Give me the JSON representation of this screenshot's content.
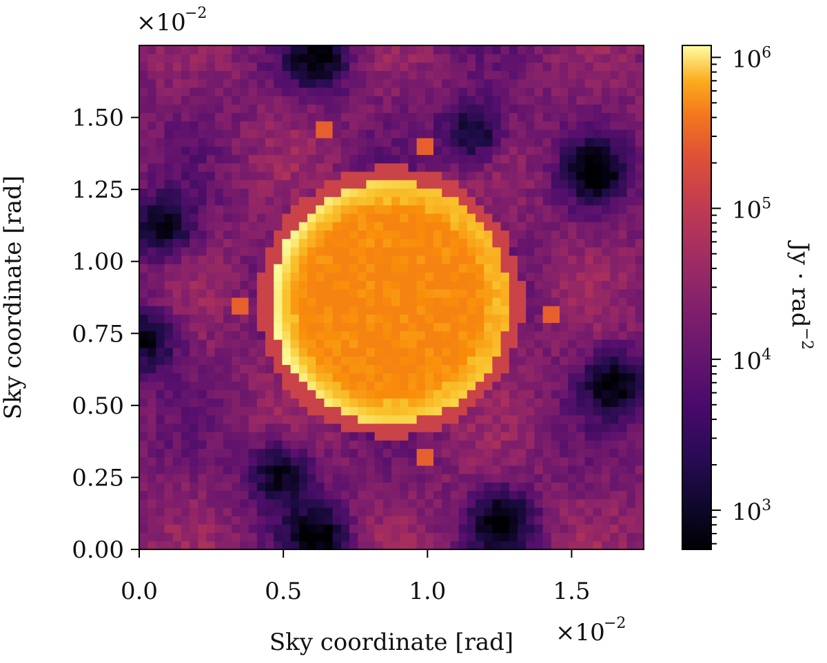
{
  "chart_data": {
    "type": "heatmap",
    "title": "",
    "xlabel": "Sky coordinate [rad]",
    "ylabel": "Sky coordinate [rad]",
    "x_offset_label": "×10^−2",
    "y_offset_label": "×10^−2",
    "xlim": [
      0.0,
      1.75
    ],
    "ylim": [
      0.0,
      1.75
    ],
    "axis_scale_exponent": -2,
    "xticks": [
      0.0,
      0.5,
      1.0,
      1.5
    ],
    "xtick_labels": [
      "0.0",
      "0.5",
      "1.0",
      "1.5"
    ],
    "yticks": [
      0.0,
      0.25,
      0.5,
      0.75,
      1.0,
      1.25,
      1.5
    ],
    "ytick_labels": [
      "0.00",
      "0.25",
      "0.50",
      "0.75",
      "1.00",
      "1.25",
      "1.50"
    ],
    "grid": false,
    "colormap": "inferno",
    "colorbar": {
      "label": "Jy · rad^−2",
      "scale": "log",
      "range": [
        550,
        1200000
      ],
      "ticks": [
        1000,
        10000,
        100000,
        1000000
      ],
      "tick_labels": [
        "10^3",
        "10^4",
        "10^5",
        "10^6"
      ]
    },
    "features": {
      "ring": {
        "center": [
          0.87,
          0.86
        ],
        "radius": 0.42,
        "brightness": 700000,
        "bright_arc_sides": [
          "left",
          "lower-right",
          "top"
        ]
      },
      "interior_level": 150000,
      "background_level": 8000,
      "dark_spots": [
        [
          0.08,
          1.12
        ],
        [
          0.62,
          1.7
        ],
        [
          1.16,
          1.45
        ],
        [
          0.49,
          0.27
        ],
        [
          0.62,
          0.05
        ],
        [
          1.65,
          0.58
        ],
        [
          1.58,
          1.31
        ],
        [
          0.02,
          0.73
        ],
        [
          1.26,
          0.1
        ]
      ],
      "compact_sources": [
        [
          1.44,
          0.81
        ],
        [
          1.0,
          1.4
        ],
        [
          0.64,
          1.46
        ],
        [
          1.0,
          0.32
        ],
        [
          0.35,
          0.85
        ]
      ]
    }
  }
}
